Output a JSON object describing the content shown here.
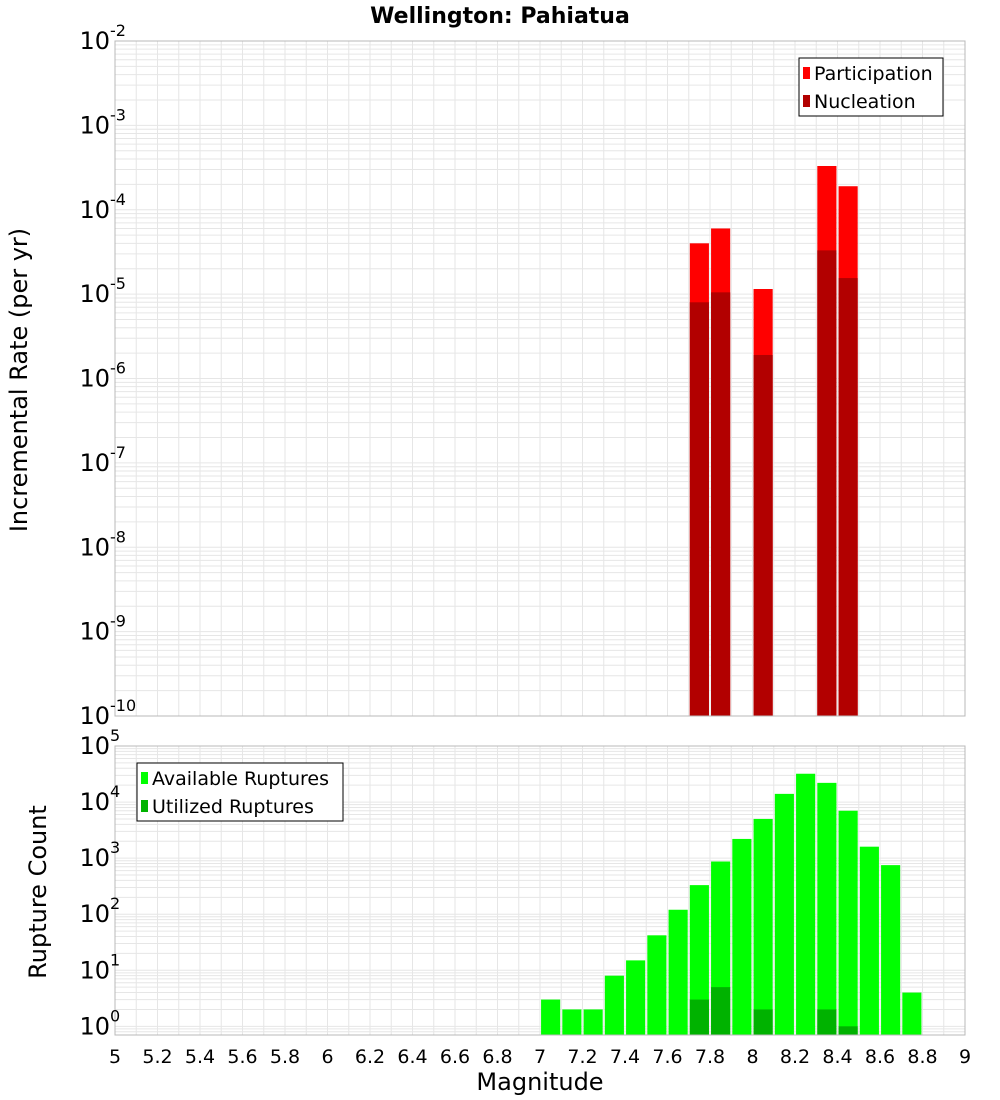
{
  "chart_data": [
    {
      "type": "bar",
      "title": "Wellington: Pahiatua",
      "ylabel": "Incremental Rate (per yr)",
      "xlabel": "",
      "y_scale": "log",
      "ylim": [
        1e-10,
        0.01
      ],
      "y_decades": [
        -10,
        -9,
        -8,
        -7,
        -6,
        -5,
        -4,
        -3,
        -2
      ],
      "xlim": [
        5,
        9
      ],
      "legend_position": "top-right",
      "grid": true,
      "bar_width": 0.09,
      "series": [
        {
          "name": "Participation",
          "color": "#ff0000",
          "points": [
            {
              "x": 7.75,
              "y": 4e-05
            },
            {
              "x": 7.85,
              "y": 6e-05
            },
            {
              "x": 8.05,
              "y": 1.15e-05
            },
            {
              "x": 8.35,
              "y": 0.00033
            },
            {
              "x": 8.45,
              "y": 0.00019
            }
          ]
        },
        {
          "name": "Nucleation",
          "color": "#b20000",
          "points": [
            {
              "x": 7.75,
              "y": 8e-06
            },
            {
              "x": 7.85,
              "y": 1.05e-05
            },
            {
              "x": 8.05,
              "y": 1.9e-06
            },
            {
              "x": 8.35,
              "y": 3.3e-05
            },
            {
              "x": 8.45,
              "y": 1.55e-05
            }
          ]
        }
      ]
    },
    {
      "type": "bar",
      "title": "",
      "ylabel": "Rupture Count",
      "xlabel": "Magnitude",
      "y_scale": "log",
      "ylim": [
        0.7,
        100000
      ],
      "y_decades": [
        0,
        1,
        2,
        3,
        4,
        5
      ],
      "xlim": [
        5,
        9
      ],
      "x_ticks": [
        "5",
        "5.2",
        "5.4",
        "5.6",
        "5.8",
        "6",
        "6.2",
        "6.4",
        "6.6",
        "6.8",
        "7",
        "7.2",
        "7.4",
        "7.6",
        "7.8",
        "8",
        "8.2",
        "8.4",
        "8.6",
        "8.8",
        "9"
      ],
      "legend_position": "top-left",
      "grid": true,
      "bar_width": 0.09,
      "series": [
        {
          "name": "Available Ruptures",
          "color": "#00ff00",
          "points": [
            {
              "x": 7.05,
              "y": 3
            },
            {
              "x": 7.15,
              "y": 2
            },
            {
              "x": 7.25,
              "y": 2
            },
            {
              "x": 7.35,
              "y": 8
            },
            {
              "x": 7.45,
              "y": 15
            },
            {
              "x": 7.55,
              "y": 42
            },
            {
              "x": 7.65,
              "y": 120
            },
            {
              "x": 7.75,
              "y": 330
            },
            {
              "x": 7.85,
              "y": 870
            },
            {
              "x": 7.95,
              "y": 2200
            },
            {
              "x": 8.05,
              "y": 5000
            },
            {
              "x": 8.15,
              "y": 14000
            },
            {
              "x": 8.25,
              "y": 32000
            },
            {
              "x": 8.35,
              "y": 22000
            },
            {
              "x": 8.45,
              "y": 7000
            },
            {
              "x": 8.55,
              "y": 1600
            },
            {
              "x": 8.65,
              "y": 750
            },
            {
              "x": 8.75,
              "y": 4
            }
          ]
        },
        {
          "name": "Utilized Ruptures",
          "color": "#00b200",
          "points": [
            {
              "x": 7.75,
              "y": 3
            },
            {
              "x": 7.85,
              "y": 5
            },
            {
              "x": 8.05,
              "y": 2
            },
            {
              "x": 8.35,
              "y": 2
            },
            {
              "x": 8.45,
              "y": 1
            }
          ]
        }
      ]
    }
  ]
}
